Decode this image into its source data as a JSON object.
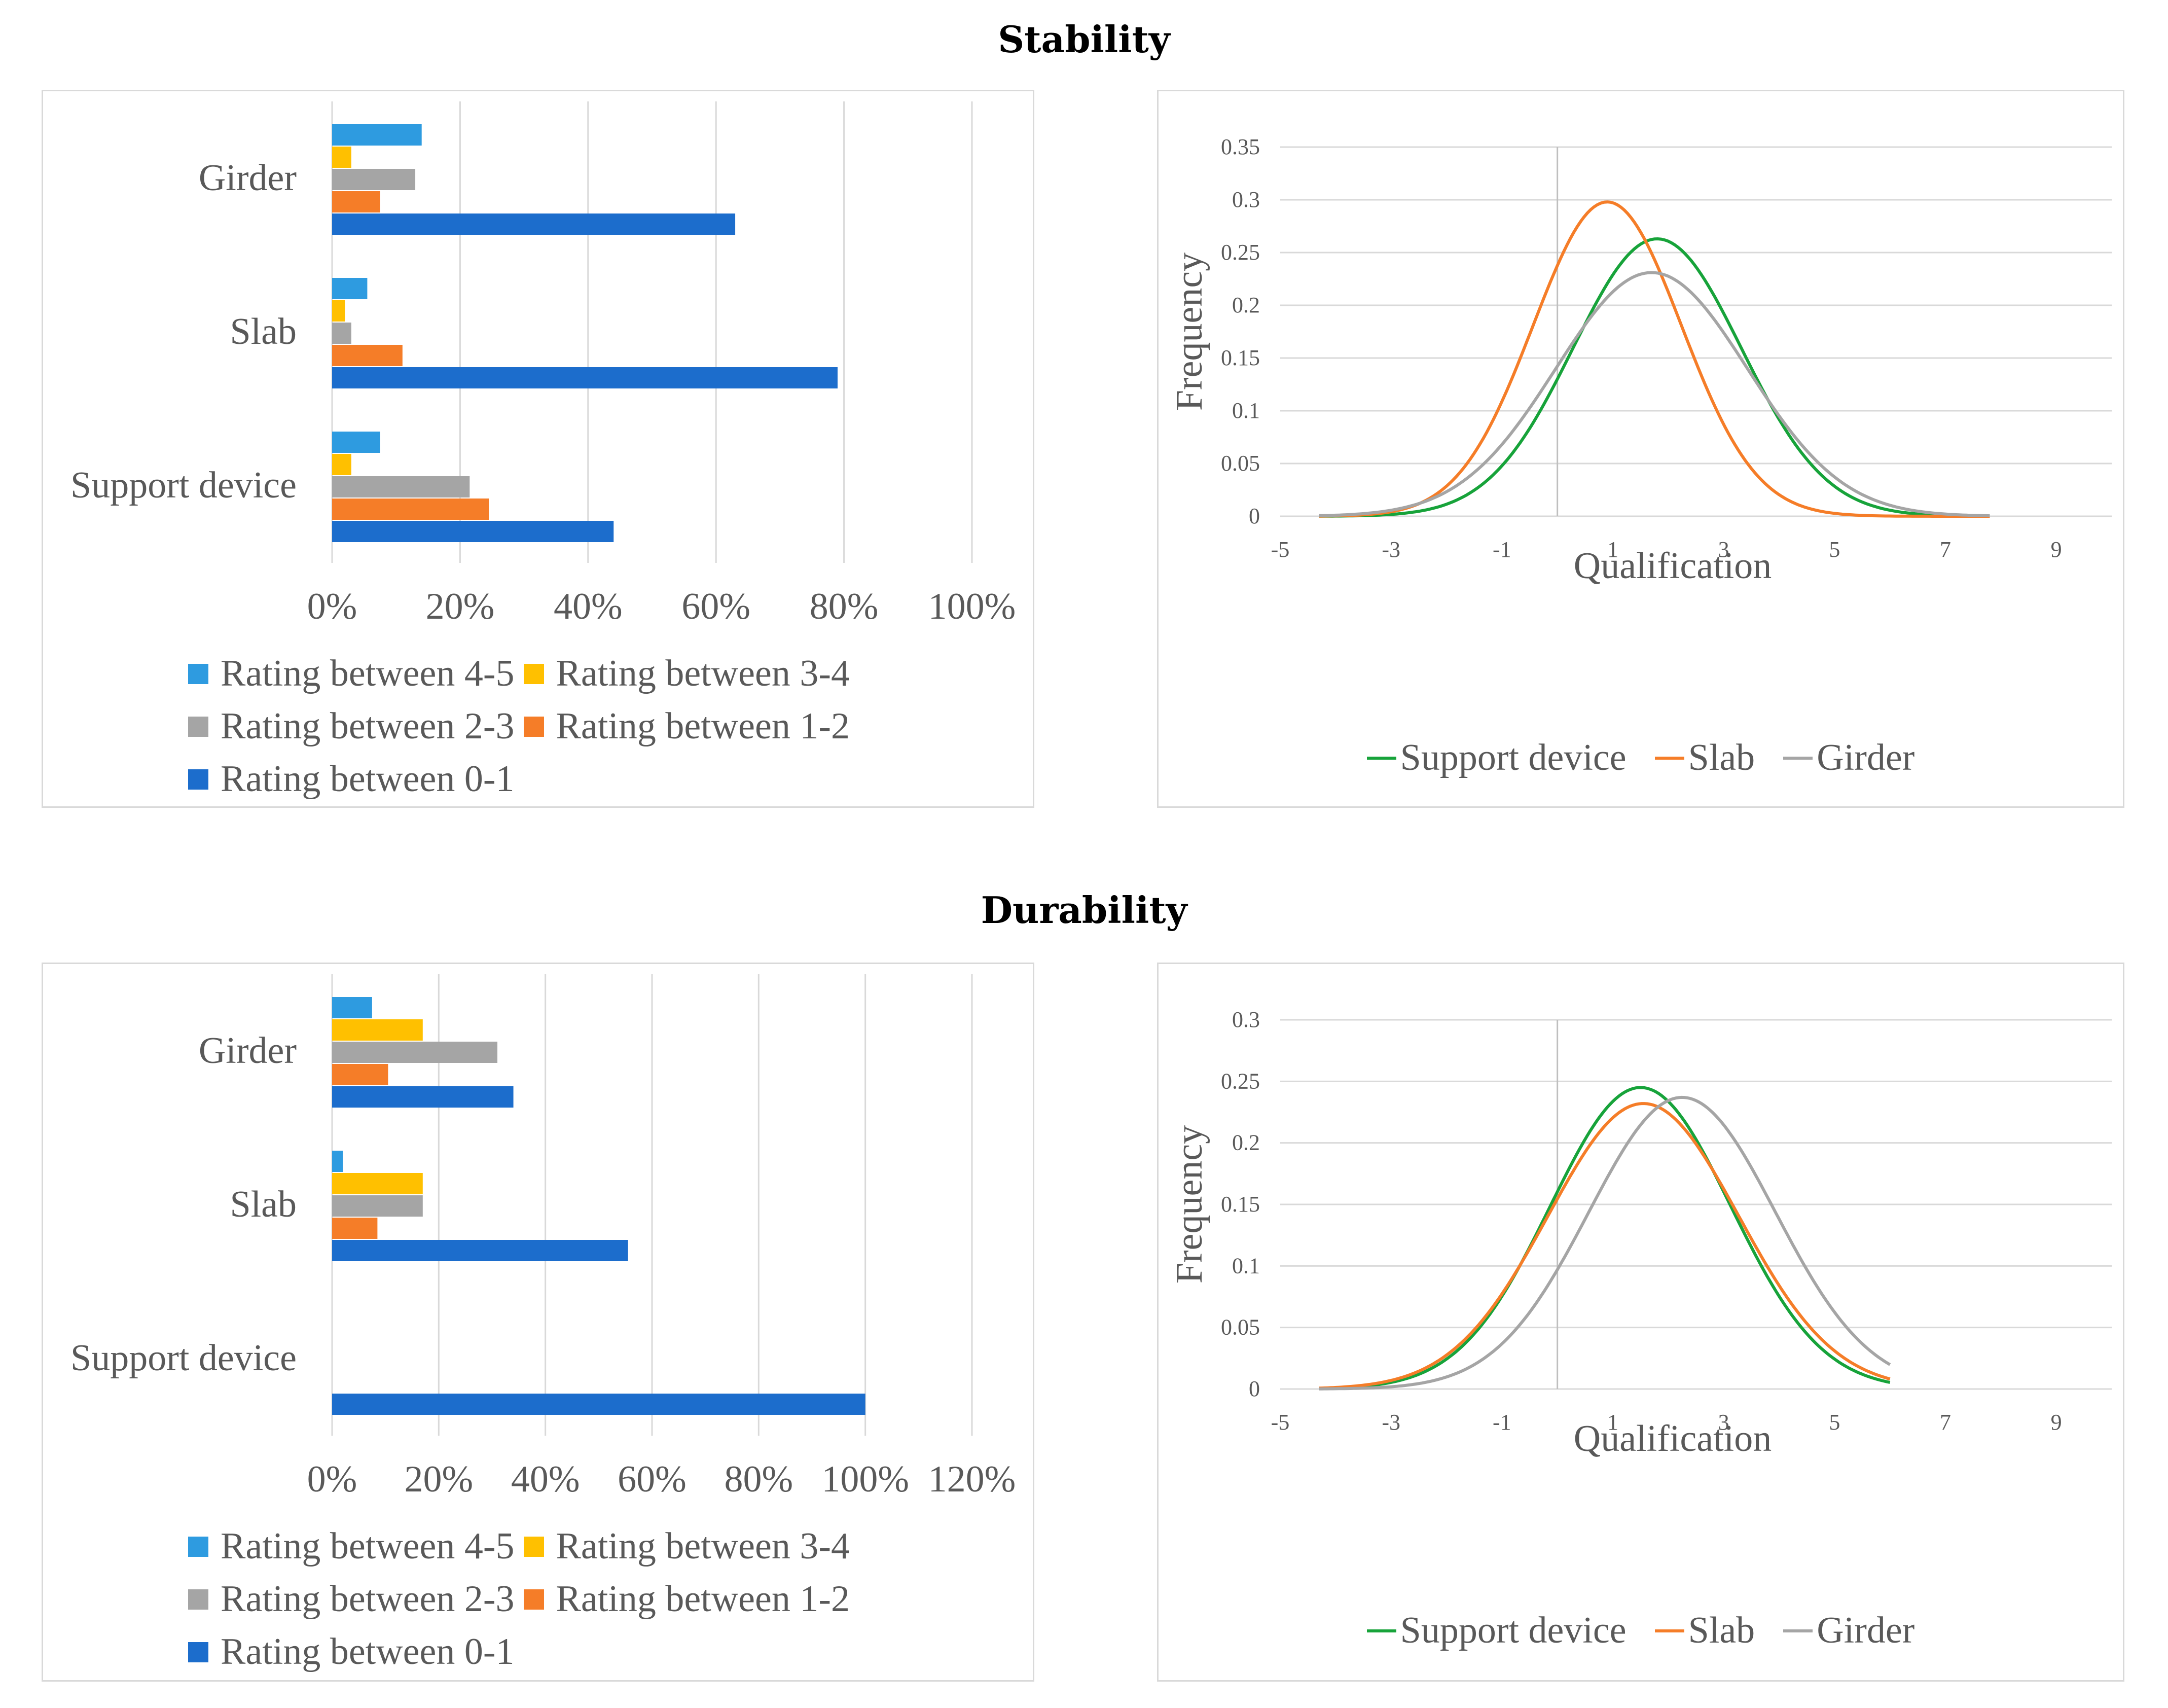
{
  "sections": {
    "stability_title": "Stability",
    "durability_title": "Durability"
  },
  "legend_labels": [
    "Rating between 4-5",
    "Rating between 3-4",
    "Rating between 2-3",
    "Rating between 1-2",
    "Rating between 0-1"
  ],
  "line_legend_labels": [
    "Support device",
    "Slab",
    "Girder"
  ],
  "colors": {
    "r45": "#2e9be0",
    "r34": "#ffc000",
    "r23": "#a5a5a5",
    "r12": "#f57d28",
    "r01": "#1c6dcc",
    "support_device": "#17a33a",
    "slab": "#f57d28",
    "girder": "#a5a5a5"
  },
  "chart_data": [
    {
      "id": "stability_bars",
      "type": "bar",
      "orientation": "horizontal",
      "title": "Stability",
      "categories": [
        "Girder",
        "Slab",
        "Support device"
      ],
      "series": [
        {
          "name": "Rating between 4-5",
          "values": [
            14,
            5.5,
            7.5
          ]
        },
        {
          "name": "Rating between 3-4",
          "values": [
            3,
            2,
            3
          ]
        },
        {
          "name": "Rating between 2-3",
          "values": [
            13,
            3,
            21.5
          ]
        },
        {
          "name": "Rating between 1-2",
          "values": [
            7.5,
            11,
            24.5
          ]
        },
        {
          "name": "Rating between 0-1",
          "values": [
            63,
            79,
            44
          ]
        }
      ],
      "xlim": [
        0,
        100
      ],
      "xticks": [
        "0%",
        "20%",
        "40%",
        "60%",
        "80%",
        "100%"
      ],
      "grid": true,
      "legend": "bottom"
    },
    {
      "id": "stability_lines",
      "type": "line",
      "title": "Stability",
      "xlabel": "Qualification",
      "ylabel": "Frequency",
      "xlim": [
        -5,
        10
      ],
      "ylim": [
        0,
        0.35
      ],
      "xticks": [
        "-5",
        "-3",
        "-1",
        "1",
        "3",
        "5",
        "7",
        "9"
      ],
      "yticks": [
        "0",
        "0.05",
        "0.1",
        "0.15",
        "0.2",
        "0.25",
        "0.3",
        "0.35"
      ],
      "vline_x": 0,
      "curve_range": [
        -4.3,
        7.8
      ],
      "series": [
        {
          "name": "Support device",
          "mean": 1.8,
          "peak": 0.263
        },
        {
          "name": "Slab",
          "mean": 0.9,
          "peak": 0.298
        },
        {
          "name": "Girder",
          "mean": 1.7,
          "peak": 0.231
        }
      ],
      "legend": "bottom"
    },
    {
      "id": "durability_bars",
      "type": "bar",
      "orientation": "horizontal",
      "title": "Durability",
      "categories": [
        "Girder",
        "Slab",
        "Support device"
      ],
      "series": [
        {
          "name": "Rating between 4-5",
          "values": [
            7.5,
            2,
            0
          ]
        },
        {
          "name": "Rating between 3-4",
          "values": [
            17,
            17,
            0
          ]
        },
        {
          "name": "Rating between 2-3",
          "values": [
            31,
            17,
            0
          ]
        },
        {
          "name": "Rating between 1-2",
          "values": [
            10.5,
            8.5,
            0
          ]
        },
        {
          "name": "Rating between 0-1",
          "values": [
            34,
            55.5,
            100
          ]
        }
      ],
      "xlim": [
        0,
        120
      ],
      "xticks": [
        "0%",
        "20%",
        "40%",
        "60%",
        "80%",
        "100%",
        "120%"
      ],
      "grid": true,
      "legend": "bottom"
    },
    {
      "id": "durability_lines",
      "type": "line",
      "title": "Durability",
      "xlabel": "Qualification",
      "ylabel": "Frequency",
      "xlim": [
        -5,
        10
      ],
      "ylim": [
        0,
        0.3
      ],
      "xticks": [
        "-5",
        "-3",
        "-1",
        "1",
        "3",
        "5",
        "7",
        "9"
      ],
      "yticks": [
        "0",
        "0.05",
        "0.1",
        "0.15",
        "0.2",
        "0.25",
        "0.3"
      ],
      "vline_x": 0,
      "curve_range": [
        -4.3,
        6
      ],
      "series": [
        {
          "name": "Support device",
          "mean": 1.5,
          "peak": 0.245
        },
        {
          "name": "Slab",
          "mean": 1.55,
          "peak": 0.232
        },
        {
          "name": "Girder",
          "mean": 2.25,
          "peak": 0.237
        }
      ],
      "legend": "bottom"
    }
  ]
}
